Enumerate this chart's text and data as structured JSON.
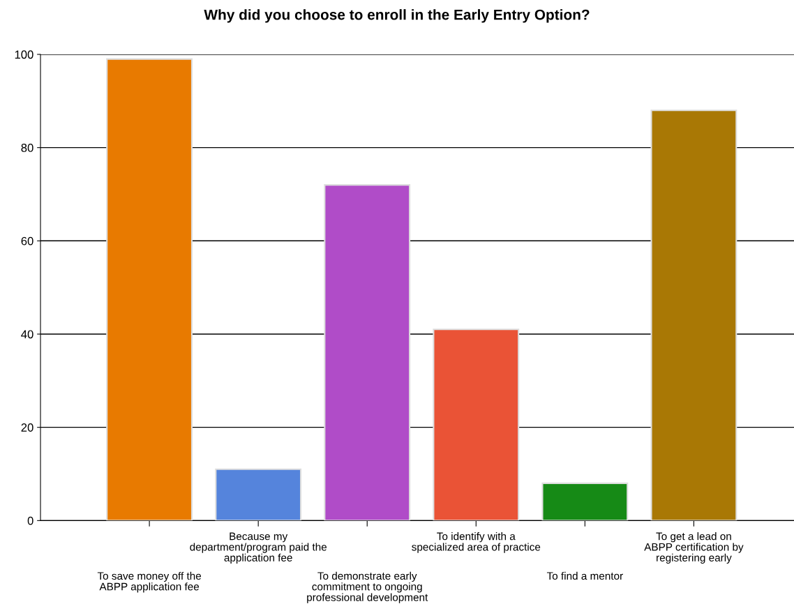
{
  "chart_data": {
    "type": "bar",
    "title": "Why did you choose to enroll in the Early Entry Option?",
    "categories": [
      "To save money off the\nABPP application fee",
      "Because my\ndepartment/program paid the\napplication fee",
      "To demonstrate early\ncommitment to ongoing\nprofessional development",
      "To identify with a\nspecialized area of practice",
      "To find a mentor",
      "To get a lead on\nABPP certification by\nregistering early"
    ],
    "values": [
      99,
      11,
      72,
      41,
      8,
      88
    ],
    "colors": [
      "#e87a00",
      "#5584dc",
      "#b04cc8",
      "#ea5336",
      "#168a16",
      "#a97805"
    ],
    "ylim": [
      0,
      100
    ],
    "yticks": [
      0,
      20,
      40,
      60,
      80,
      100
    ],
    "grid": "y"
  }
}
